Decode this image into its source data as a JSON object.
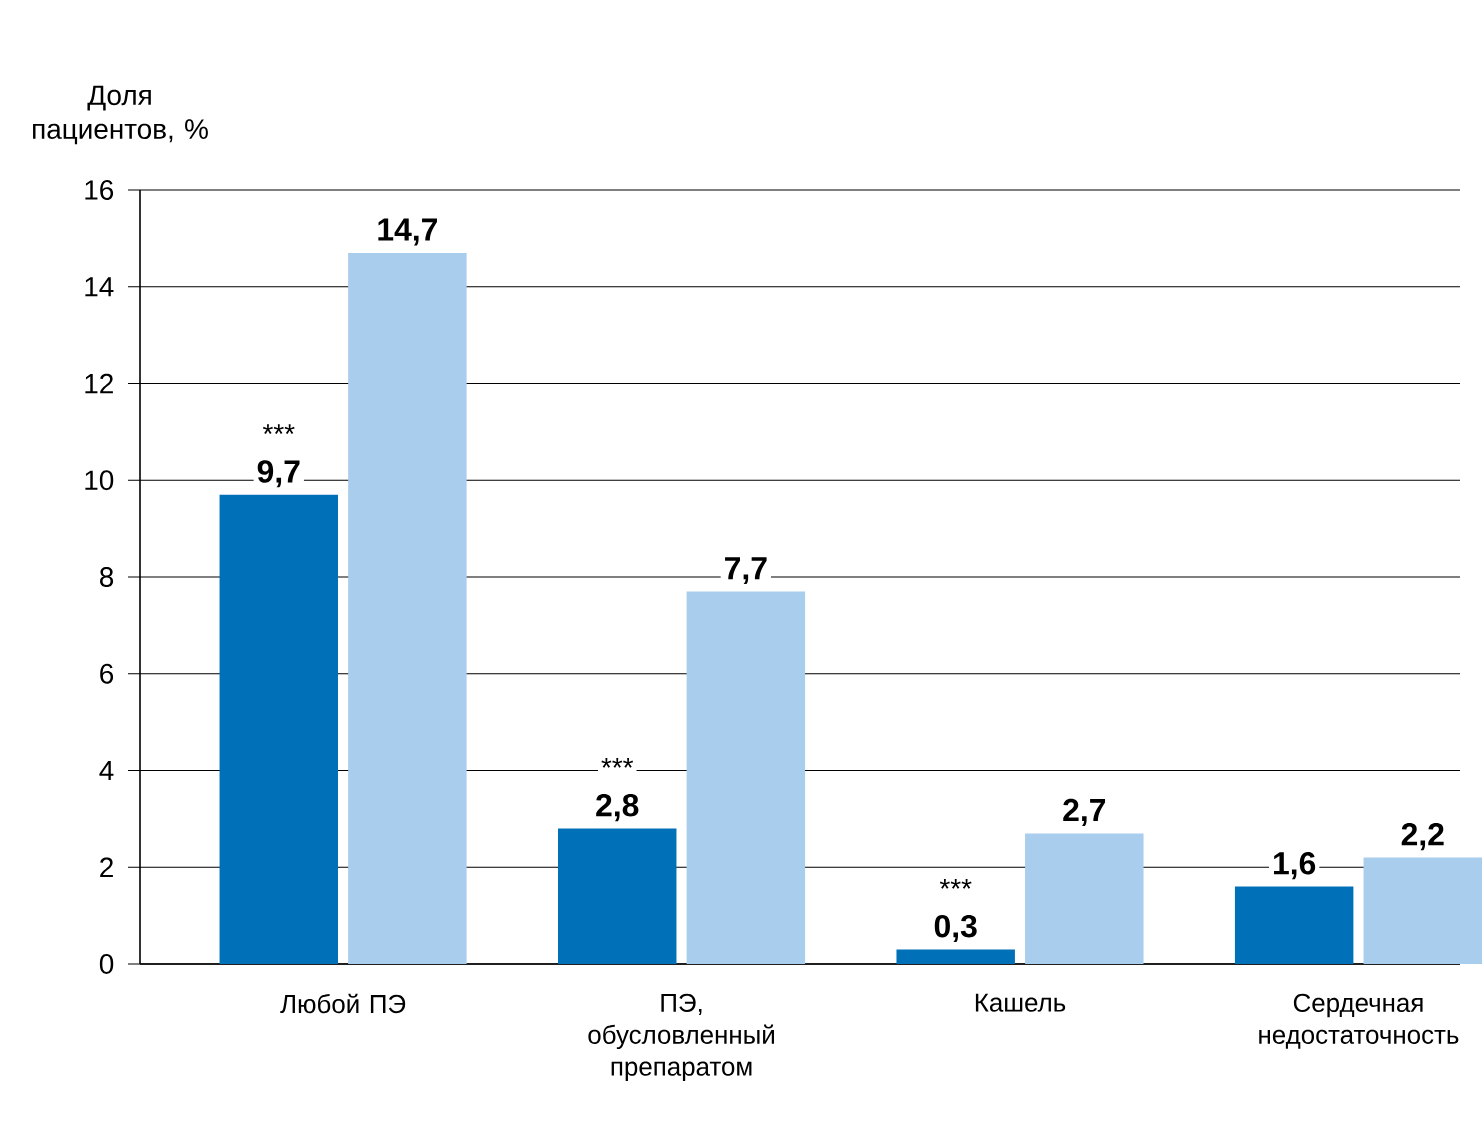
{
  "chart_data": {
    "type": "bar",
    "ylabel": "Доля пациентов, %",
    "categories": [
      "Любой ПЭ",
      "ПЭ, обусловленный препаратом",
      "Кашель",
      "Сердечная недостаточность"
    ],
    "series": [
      {
        "color": "#0070b8",
        "values": [
          9.7,
          2.8,
          0.3,
          1.6
        ],
        "value_labels": [
          "9,7",
          "2,8",
          "0,3",
          "1,6"
        ]
      },
      {
        "color": "#a9cdec",
        "values": [
          14.7,
          7.7,
          2.7,
          2.2
        ],
        "value_labels": [
          "14,7",
          "7,7",
          "2,7",
          "2,2"
        ]
      }
    ],
    "ylim": [
      0,
      16
    ],
    "yticks": [
      0,
      2,
      4,
      6,
      8,
      10,
      12,
      14,
      16
    ],
    "grid": "y",
    "annotations": [
      {
        "text": "***",
        "x": "Любой ПЭ",
        "y": 9.7
      },
      {
        "text": "***",
        "x": "ПЭ, обусловленный препаратом",
        "y": 2.8
      },
      {
        "text": "***",
        "x": "Кашель",
        "y": 0.3
      }
    ]
  }
}
